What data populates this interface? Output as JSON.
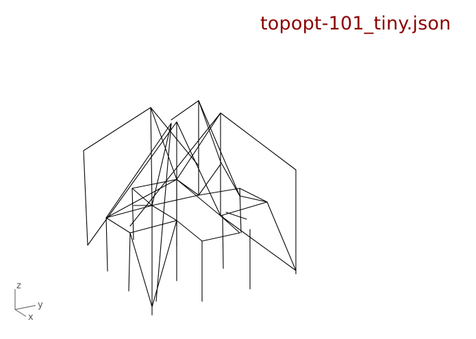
{
  "viewport": {
    "title": "topopt-101_tiny.json",
    "title_color": "#8b0000",
    "background": "#ffffff",
    "line_color": "#000000"
  },
  "axes_gizmo": {
    "z_label": "z",
    "y_label": "y",
    "x_label": "x",
    "color": "#555555"
  }
}
